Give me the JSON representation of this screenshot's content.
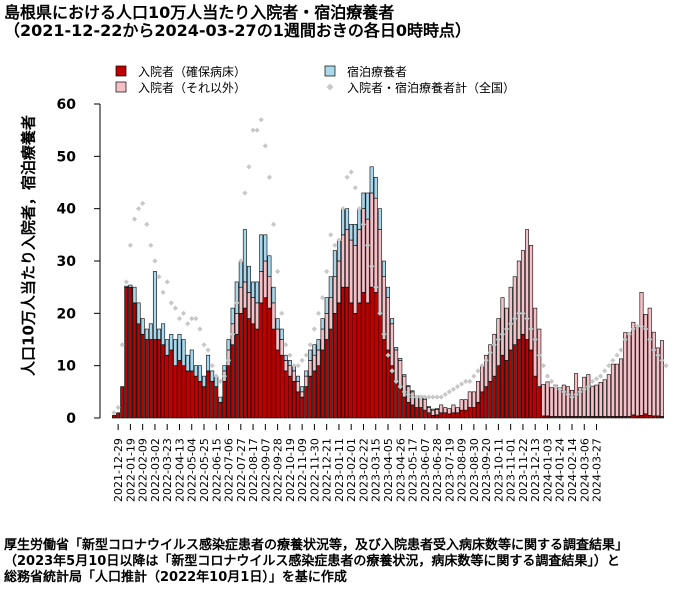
{
  "header": {
    "title": "島根県における人口10万人当たり入院者・宿泊療養者",
    "subtitle": "（2021-12-22から2024-03-27の1週間おきの各日0時時点）"
  },
  "footer": {
    "line1": "厚生労働省「新型コロナウイルス感染症患者の療養状況等，及び入院患者受入病床数等に関する調査結果」",
    "line2": "（2023年5月10日以降は「新型コロナウイルス感染症患者の療養状況，病床数等に関する調査結果」）と",
    "line3": "総務省統計局「人口推計（2022年10月1日）」を基に作成"
  },
  "colors": {
    "hosp_severe": "#c00000",
    "lodging": "#a9d7ec",
    "hosp_other": "#f5c1c7",
    "national": "#c8c8c8"
  },
  "chart_data": {
    "type": "bar",
    "stacked": true,
    "ylabel": "人口10万人当たり入院者，宿泊療養者",
    "ylim": [
      0,
      60
    ],
    "yticks": [
      0,
      10,
      20,
      30,
      40,
      50,
      60
    ],
    "grid": false,
    "legend_position": "top",
    "legend": [
      {
        "name": "入院者（確保病床）",
        "marker": "square",
        "color_key": "hosp_severe"
      },
      {
        "name": "入院者（それ以外）",
        "marker": "square",
        "color_key": "hosp_other"
      },
      {
        "name": "宿泊療養者",
        "marker": "square",
        "color_key": "lodging"
      },
      {
        "name": "入院者・宿泊療養者計（全国）",
        "marker": "diamond",
        "color_key": "national"
      }
    ],
    "x_start": "2021-12-22",
    "x_step_days": 7,
    "x_tick_labels": [
      "2021-12-29",
      "2022-01-19",
      "2022-02-09",
      "2022-03-02",
      "2022-03-23",
      "2022-04-13",
      "2022-05-04",
      "2022-05-25",
      "2022-06-15",
      "2022-07-06",
      "2022-07-27",
      "2022-08-17",
      "2022-09-07",
      "2022-09-28",
      "2022-10-19",
      "2022-11-09",
      "2022-11-30",
      "2022-12-21",
      "2023-01-11",
      "2023-02-01",
      "2023-02-22",
      "2023-03-15",
      "2023-04-05",
      "2023-04-26",
      "2023-05-17",
      "2023-06-07",
      "2023-06-28",
      "2023-07-19",
      "2023-08-09",
      "2023-08-30",
      "2023-09-20",
      "2023-10-11",
      "2023-11-01",
      "2023-11-22",
      "2023-12-13",
      "2024-01-03",
      "2024-01-24",
      "2024-02-14",
      "2024-03-06",
      "2024-03-27"
    ],
    "series": [
      {
        "name": "入院者（確保病床）",
        "values": [
          0.5,
          1,
          6,
          25,
          25,
          22,
          18,
          16,
          15,
          15,
          15,
          15,
          14,
          12,
          13,
          10,
          11,
          10,
          9,
          9,
          8,
          7,
          6,
          9,
          7,
          6,
          3,
          7,
          10,
          14,
          16,
          20,
          21,
          19,
          18,
          17,
          22,
          23,
          21,
          17,
          13,
          12,
          9,
          8,
          7,
          5,
          4,
          6,
          8,
          9,
          10,
          13,
          15,
          17,
          20,
          22,
          25,
          25,
          22,
          20,
          22,
          24,
          22,
          25,
          24,
          20,
          15,
          13,
          10,
          7,
          6,
          4,
          3,
          2.5,
          2,
          2,
          1.5,
          1,
          0.5,
          0.6,
          1,
          1,
          0.8,
          1,
          1,
          1.5,
          1.5,
          2,
          2,
          3,
          5,
          6,
          7,
          8,
          10,
          12,
          11,
          13,
          14,
          15,
          16,
          15,
          13,
          8,
          6,
          0.4,
          0.4,
          0.3,
          0.3,
          0.3,
          0.3,
          0.3,
          0.3,
          0.3,
          0.3,
          0.3,
          0.3,
          0.3,
          0.3,
          0.3,
          0.3,
          0.3,
          0.3,
          0.3,
          0.3,
          0.3,
          0.3,
          0.6,
          0.4,
          0.5,
          0.8,
          0.5,
          0.4,
          0.4,
          0.3
        ]
      },
      {
        "name": "入院者（それ以外）",
        "values": [
          0,
          0,
          0,
          0,
          0,
          0,
          0,
          0,
          0,
          0,
          0,
          0,
          0,
          0,
          0,
          0,
          0,
          0,
          0,
          0,
          0,
          0,
          0,
          0,
          0,
          0,
          0,
          2,
          3,
          4,
          4,
          5,
          5,
          5,
          5,
          5,
          6,
          7,
          6,
          5,
          4,
          3,
          2,
          2,
          2,
          2,
          1,
          2,
          3,
          3,
          3,
          4,
          5,
          6,
          7,
          8,
          10,
          11,
          12,
          13,
          14,
          16,
          16,
          18,
          18,
          16,
          12,
          10,
          8,
          6,
          5,
          4,
          3,
          2.5,
          2,
          2,
          2,
          1,
          1,
          1,
          1.5,
          1,
          1,
          1.5,
          1,
          2,
          2,
          3,
          3,
          4,
          5,
          6,
          7,
          8,
          9,
          11,
          10,
          12,
          13,
          15,
          16,
          21,
          20,
          13,
          11,
          6,
          6.5,
          5.5,
          6,
          5.5,
          6,
          5.7,
          5,
          8.2,
          5.5,
          7.5,
          8,
          5.8,
          6,
          6.5,
          7,
          8,
          10,
          10,
          11,
          16,
          16,
          17.7,
          17,
          23.5,
          19,
          20.5,
          16,
          13,
          14.5,
          9.5
        ]
      },
      {
        "name": "宿泊療養者",
        "values": [
          0,
          0,
          0,
          0.2,
          0.4,
          3,
          4,
          3,
          2,
          3,
          13,
          2,
          4,
          3,
          3,
          5,
          5,
          5,
          3,
          4,
          2,
          3,
          2,
          3,
          2,
          2,
          1,
          1,
          2,
          3,
          6,
          5,
          10,
          5,
          3,
          4,
          7,
          5,
          4,
          3,
          2,
          2,
          1,
          1,
          1,
          1,
          1,
          1,
          2,
          2,
          2,
          2,
          3,
          4,
          5,
          4,
          5,
          4,
          3,
          4,
          4,
          3,
          5,
          5,
          4,
          4,
          3,
          2,
          1,
          0.5,
          0.4,
          0.3,
          0.2,
          0.2,
          0.2,
          0.2,
          0.2,
          0.2,
          0.2,
          0.2,
          0,
          0,
          0,
          0,
          0,
          0,
          0,
          0,
          0,
          0,
          0,
          0,
          0,
          0,
          0,
          0,
          0,
          0,
          0,
          0,
          0,
          0,
          0,
          0,
          0,
          0,
          0,
          0,
          0,
          0,
          0,
          0,
          0,
          0,
          0,
          0,
          0,
          0,
          0,
          0,
          0,
          0,
          0,
          0,
          0,
          0,
          0,
          0,
          0,
          0,
          0,
          0,
          0,
          0,
          0,
          0
        ]
      },
      {
        "name": "入院者・宿泊療養者計（全国）",
        "kind": "points",
        "values": [
          1,
          2,
          14,
          26,
          33,
          38,
          40,
          41,
          37,
          33,
          30,
          27,
          24,
          26,
          22,
          21,
          19,
          20,
          18,
          19,
          19,
          17,
          14,
          13,
          10,
          8,
          7,
          8,
          11,
          16,
          22,
          30,
          43,
          48,
          55,
          55,
          57,
          52,
          46,
          37,
          28,
          20,
          14,
          12,
          10,
          10,
          11,
          12,
          14,
          17,
          20,
          23,
          28,
          35,
          33,
          34,
          40,
          46,
          47,
          44,
          40,
          37,
          33,
          29,
          25,
          20,
          16,
          12,
          9,
          7,
          6,
          5,
          4.5,
          4,
          4,
          4,
          4,
          4,
          4,
          4,
          4,
          4.5,
          5,
          5.5,
          6,
          6.5,
          7,
          7,
          8,
          9,
          10,
          11,
          12.5,
          14,
          15,
          16,
          17,
          18,
          19,
          20,
          20,
          19,
          17,
          15,
          12,
          10,
          8,
          7,
          6,
          5.5,
          5,
          4.5,
          4,
          4.5,
          5,
          5.5,
          6,
          7,
          7.5,
          8,
          9,
          10,
          11,
          12,
          13,
          15,
          16,
          17,
          17.5,
          17.5,
          17,
          15,
          13,
          12,
          11,
          10
        ]
      }
    ]
  }
}
